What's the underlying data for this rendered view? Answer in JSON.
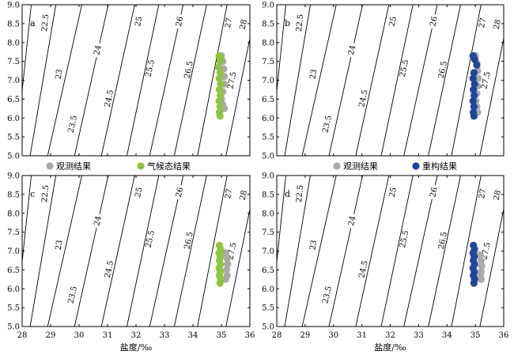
{
  "chart_data": [
    {
      "panel": "a",
      "type": "scatter",
      "xlabel": "",
      "ylabel": "",
      "xlim": [
        28,
        36
      ],
      "ylim": [
        5.0,
        9.0
      ],
      "xticks": [
        "28",
        "29",
        "30",
        "31",
        "32",
        "33",
        "34",
        "35",
        "36"
      ],
      "yticks": [
        "5.0",
        "5.5",
        "6.0",
        "6.5",
        "7.0",
        "7.5",
        "8.0",
        "8.5",
        "9.0"
      ],
      "contours": [
        "22.5",
        "23",
        "23.5",
        "24",
        "24.5",
        "25",
        "25.5",
        "26",
        "26.5",
        "27",
        "27.5",
        "28"
      ],
      "series": [
        {
          "name": "观测结果",
          "color": "#aaaaaa",
          "points": [
            [
              35.0,
              7.65
            ],
            [
              35.05,
              7.5
            ],
            [
              35.08,
              7.3
            ],
            [
              35.1,
              7.1
            ],
            [
              35.1,
              6.9
            ],
            [
              35.05,
              6.7
            ],
            [
              35.0,
              6.5
            ],
            [
              35.05,
              6.35
            ],
            [
              35.1,
              6.25
            ]
          ]
        },
        {
          "name": "气候态结果",
          "color": "#8cc63f",
          "points": [
            [
              34.92,
              7.65
            ],
            [
              34.98,
              7.6
            ],
            [
              34.95,
              7.5
            ],
            [
              34.9,
              7.35
            ],
            [
              34.95,
              7.2
            ],
            [
              34.92,
              7.05
            ],
            [
              34.97,
              6.9
            ],
            [
              34.93,
              6.75
            ],
            [
              34.96,
              6.6
            ],
            [
              34.92,
              6.45
            ],
            [
              34.95,
              6.3
            ],
            [
              34.93,
              6.15
            ],
            [
              34.95,
              6.05
            ]
          ]
        }
      ]
    },
    {
      "panel": "b",
      "type": "scatter",
      "xlabel": "",
      "ylabel": "",
      "xlim": [
        28,
        36
      ],
      "ylim": [
        5.0,
        9.0
      ],
      "xticks": [
        "28",
        "29",
        "30",
        "31",
        "32",
        "33",
        "34",
        "35",
        "36"
      ],
      "yticks": [
        "5.0",
        "5.5",
        "6.0",
        "6.5",
        "7.0",
        "7.5",
        "8.0",
        "8.5",
        "9.0"
      ],
      "contours": [
        "22.5",
        "23",
        "23.5",
        "24",
        "24.5",
        "25",
        "25.5",
        "26",
        "26.5",
        "27",
        "27.5",
        "28"
      ],
      "series": [
        {
          "name": "观测结果",
          "color": "#aaaaaa",
          "points": [
            [
              35.0,
              7.65
            ],
            [
              35.05,
              7.45
            ],
            [
              35.08,
              7.25
            ],
            [
              35.1,
              7.05
            ],
            [
              35.08,
              6.85
            ],
            [
              35.05,
              6.65
            ],
            [
              35.02,
              6.45
            ],
            [
              35.05,
              6.3
            ],
            [
              35.08,
              6.15
            ]
          ]
        },
        {
          "name": "重构结果",
          "color": "#1f4799",
          "points": [
            [
              34.92,
              7.65
            ],
            [
              34.98,
              7.55
            ],
            [
              35.05,
              7.4
            ],
            [
              34.95,
              7.2
            ],
            [
              34.92,
              7.05
            ],
            [
              34.97,
              6.9
            ],
            [
              34.93,
              6.75
            ],
            [
              34.96,
              6.6
            ],
            [
              34.92,
              6.45
            ],
            [
              34.95,
              6.3
            ],
            [
              34.93,
              6.15
            ],
            [
              34.95,
              6.05
            ]
          ]
        }
      ]
    },
    {
      "panel": "c",
      "type": "scatter",
      "xlabel": "盐度/‰",
      "ylabel": "",
      "xlim": [
        28,
        36
      ],
      "ylim": [
        5.0,
        9.0
      ],
      "xticks": [
        "28",
        "29",
        "30",
        "31",
        "32",
        "33",
        "34",
        "35",
        "36"
      ],
      "yticks": [
        "5.0",
        "5.5",
        "6.0",
        "6.5",
        "7.0",
        "7.5",
        "8.0",
        "8.5",
        "9.0"
      ],
      "contours": [
        "22.5",
        "23",
        "23.5",
        "24",
        "24.5",
        "25",
        "25.5",
        "26",
        "26.5",
        "27",
        "27.5",
        "28"
      ],
      "series": [
        {
          "name": "观测结果",
          "color": "#aaaaaa",
          "points": [
            [
              35.15,
              6.95
            ],
            [
              35.2,
              6.8
            ],
            [
              35.22,
              6.65
            ],
            [
              35.18,
              6.5
            ],
            [
              35.2,
              6.35
            ],
            [
              35.15,
              6.25
            ]
          ]
        },
        {
          "name": "气候态结果",
          "color": "#8cc63f",
          "points": [
            [
              34.93,
              7.15
            ],
            [
              34.97,
              7.05
            ],
            [
              34.92,
              6.95
            ],
            [
              34.96,
              6.85
            ],
            [
              34.93,
              6.75
            ],
            [
              34.97,
              6.65
            ],
            [
              34.92,
              6.55
            ],
            [
              34.96,
              6.45
            ],
            [
              34.93,
              6.35
            ],
            [
              34.97,
              6.25
            ],
            [
              34.95,
              6.15
            ]
          ]
        }
      ]
    },
    {
      "panel": "d",
      "type": "scatter",
      "xlabel": "盐度/‰",
      "ylabel": "",
      "xlim": [
        28,
        36
      ],
      "ylim": [
        5.0,
        9.0
      ],
      "xticks": [
        "28",
        "29",
        "30",
        "31",
        "32",
        "33",
        "34",
        "35",
        "36"
      ],
      "yticks": [
        "5.0",
        "5.5",
        "6.0",
        "6.5",
        "7.0",
        "7.5",
        "8.0",
        "8.5",
        "9.0"
      ],
      "contours": [
        "22.5",
        "23",
        "23.5",
        "24",
        "24.5",
        "25",
        "25.5",
        "26",
        "26.5",
        "27",
        "27.5",
        "28"
      ],
      "series": [
        {
          "name": "观测结果",
          "color": "#aaaaaa",
          "points": [
            [
              35.15,
              6.9
            ],
            [
              35.2,
              6.75
            ],
            [
              35.22,
              6.6
            ],
            [
              35.2,
              6.45
            ],
            [
              35.18,
              6.35
            ],
            [
              35.2,
              6.25
            ]
          ]
        },
        {
          "name": "重构结果",
          "color": "#1f4799",
          "points": [
            [
              34.93,
              7.15
            ],
            [
              34.97,
              7.05
            ],
            [
              34.92,
              6.95
            ],
            [
              34.96,
              6.85
            ],
            [
              34.93,
              6.75
            ],
            [
              34.97,
              6.65
            ],
            [
              34.92,
              6.55
            ],
            [
              34.96,
              6.45
            ],
            [
              34.93,
              6.35
            ],
            [
              34.97,
              6.25
            ],
            [
              34.95,
              6.15
            ]
          ]
        }
      ]
    }
  ],
  "legends": [
    {
      "items": [
        {
          "label": "观测结果",
          "color": "#aaaaaa"
        },
        {
          "label": "气候态结果",
          "color": "#8cc63f"
        }
      ]
    },
    {
      "items": [
        {
          "label": "观测结果",
          "color": "#aaaaaa"
        },
        {
          "label": "重构结果",
          "color": "#1f4799"
        }
      ]
    }
  ]
}
